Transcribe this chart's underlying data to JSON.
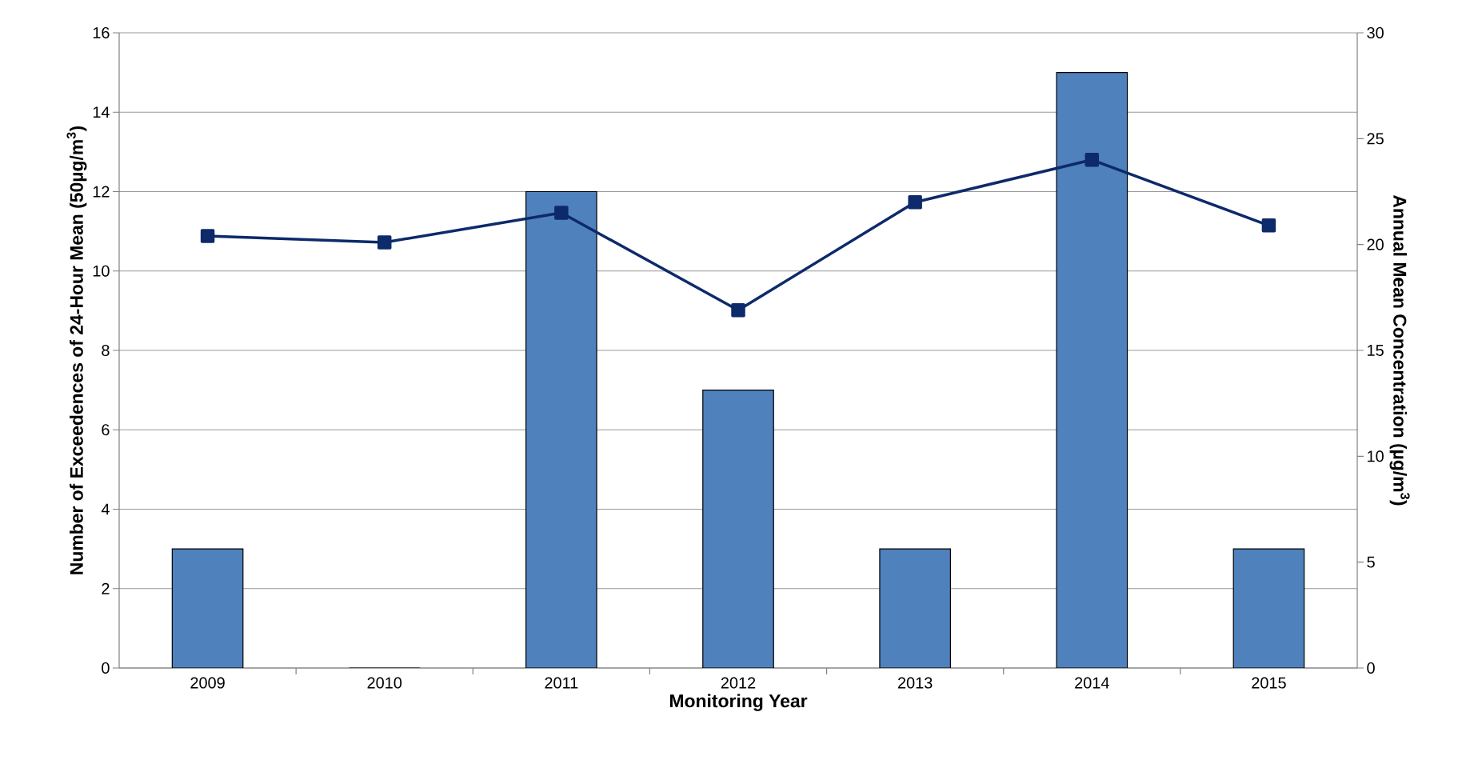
{
  "chart_data": {
    "type": "bar",
    "xlabel": "Monitoring Year",
    "ylabel": "Number of Exceedences of 24-Hour Mean (50µg/m$^{3}$)",
    "y2label": "Annual Mean Concentration (µg/m$^{3}$)",
    "categories": [
      "2009",
      "2010",
      "2011",
      "2012",
      "2013",
      "2014",
      "2015"
    ],
    "series": [
      {
        "color": "#4f81bd",
        "values": [
          3,
          0,
          12,
          7,
          3,
          15,
          3
        ]
      },
      {
        "type": "line",
        "axis": "y2",
        "color": "#0d2a6a",
        "values": [
          20.4,
          20.1,
          21.5,
          16.9,
          22.0,
          24.0,
          20.9
        ]
      }
    ],
    "ylim": [
      0,
      16
    ],
    "yticks": [
      0,
      2,
      4,
      6,
      8,
      10,
      12,
      14,
      16
    ],
    "y2lim": [
      0,
      30
    ],
    "y2ticks": [
      0,
      5,
      10,
      15,
      20,
      25,
      30
    ],
    "grid": "y",
    "marker": "square",
    "legend": false
  }
}
